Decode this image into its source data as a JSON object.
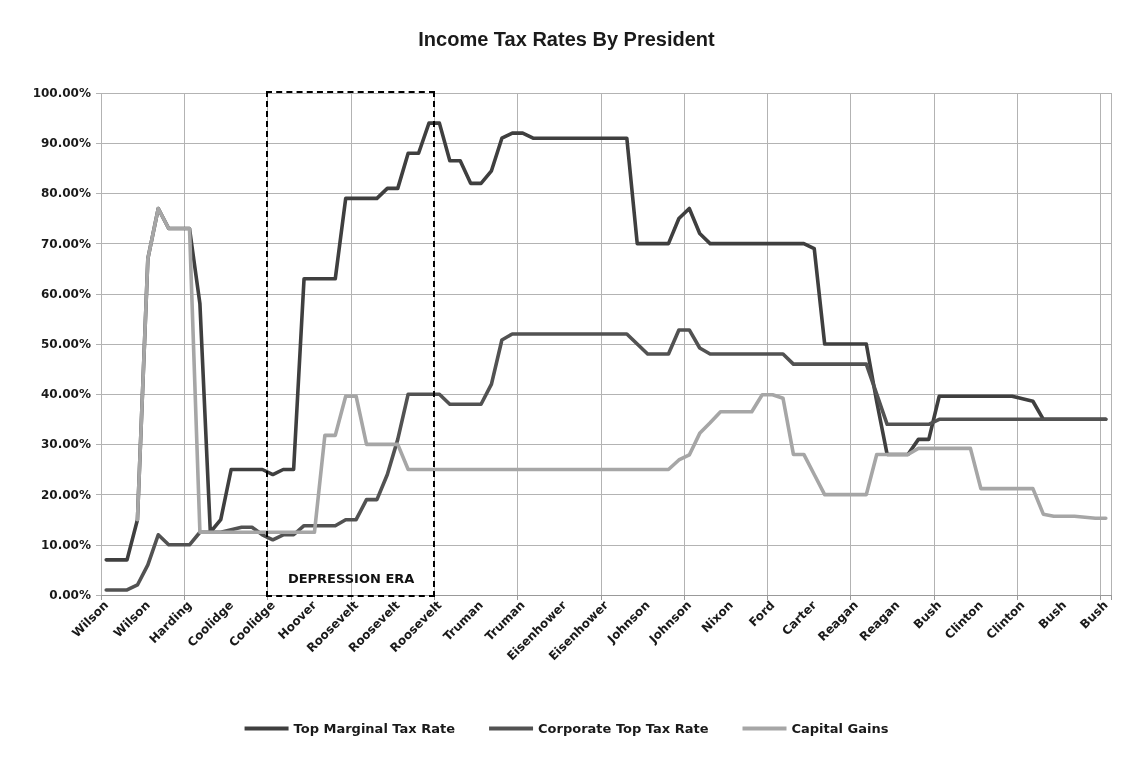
{
  "chart_data": {
    "type": "line",
    "title": "Income Tax Rates By President",
    "categories": [
      "Wilson",
      null,
      null,
      null,
      "Wilson",
      null,
      null,
      null,
      "Harding",
      null,
      null,
      null,
      "Coolidge",
      null,
      null,
      null,
      "Coolidge",
      null,
      null,
      null,
      "Hoover",
      null,
      null,
      null,
      "Roosevelt",
      null,
      null,
      null,
      "Roosevelt",
      null,
      null,
      null,
      "Roosevelt",
      null,
      null,
      null,
      "Truman",
      null,
      null,
      null,
      "Truman",
      null,
      null,
      null,
      "Eisenhower",
      null,
      null,
      null,
      "Eisenhower",
      null,
      null,
      null,
      "Johnson",
      null,
      null,
      null,
      "Johnson",
      null,
      null,
      null,
      "Nixon",
      null,
      null,
      null,
      "Ford",
      null,
      null,
      null,
      "Carter",
      null,
      null,
      null,
      "Reagan",
      null,
      null,
      null,
      "Reagan",
      null,
      null,
      null,
      "Bush",
      null,
      null,
      null,
      "Clinton",
      null,
      null,
      null,
      "Clinton",
      null,
      null,
      null,
      "Bush",
      null,
      null,
      null,
      "Bush"
    ],
    "series": [
      {
        "name": "Top Marginal Tax Rate",
        "color": "#3f3f3f",
        "values": [
          7,
          7,
          7,
          15,
          67,
          77,
          73,
          73,
          73,
          58,
          12.5,
          15,
          25,
          25,
          25,
          25,
          24,
          25,
          25,
          63,
          63,
          63,
          63,
          79,
          79,
          79,
          79,
          81,
          81,
          88,
          88,
          94,
          94,
          86.5,
          86.5,
          82,
          82,
          84.5,
          91,
          92,
          92,
          91,
          91,
          91,
          91,
          91,
          91,
          91,
          91,
          91,
          91,
          70,
          70,
          70,
          70,
          75,
          77,
          72,
          70,
          70,
          70,
          70,
          70,
          70,
          70,
          70,
          70,
          70,
          69,
          50,
          50,
          50,
          50,
          50,
          38.5,
          28,
          28,
          28,
          31,
          31,
          39.6,
          39.6,
          39.6,
          39.6,
          39.6,
          39.6,
          39.6,
          39.6,
          39.1,
          38.6,
          35,
          35,
          35,
          35,
          35,
          35,
          35
        ]
      },
      {
        "name": "Corporate Top Tax Rate",
        "color": "#525252",
        "values": [
          1,
          1,
          1,
          2,
          6,
          12,
          10,
          10,
          10,
          12.5,
          12.5,
          12.5,
          13,
          13.5,
          13.5,
          12,
          11,
          12,
          12,
          13.8,
          13.8,
          13.8,
          13.8,
          15,
          15,
          19,
          19,
          24,
          31,
          40,
          40,
          40,
          40,
          38,
          38,
          38,
          38,
          42,
          50.8,
          52,
          52,
          52,
          52,
          52,
          52,
          52,
          52,
          52,
          52,
          52,
          52,
          50,
          48,
          48,
          48,
          52.8,
          52.8,
          49.2,
          48,
          48,
          48,
          48,
          48,
          48,
          48,
          48,
          46,
          46,
          46,
          46,
          46,
          46,
          46,
          46,
          40,
          34,
          34,
          34,
          34,
          34,
          35,
          35,
          35,
          35,
          35,
          35,
          35,
          35,
          35,
          35,
          35,
          35,
          35,
          35,
          35,
          35,
          35
        ]
      },
      {
        "name": "Capital Gains",
        "color": "#a6a6a6",
        "values": [
          null,
          null,
          null,
          15,
          67,
          77,
          73,
          73,
          73,
          12.5,
          12.5,
          12.5,
          12.5,
          12.5,
          12.5,
          12.5,
          12.5,
          12.5,
          12.5,
          12.5,
          12.5,
          31.8,
          31.8,
          39.6,
          39.6,
          30,
          30,
          30,
          30,
          25,
          25,
          25,
          25,
          25,
          25,
          25,
          25,
          25,
          25,
          25,
          25,
          25,
          25,
          25,
          25,
          25,
          25,
          25,
          25,
          25,
          25,
          25,
          25,
          25,
          25,
          26.9,
          27.9,
          32.2,
          34.3,
          36.5,
          36.5,
          36.5,
          36.5,
          39.9,
          39.9,
          39.2,
          28,
          28,
          24,
          20,
          20,
          20,
          20,
          20,
          28,
          28,
          28,
          28,
          29.2,
          29.2,
          29.2,
          29.2,
          29.2,
          29.2,
          21.2,
          21.2,
          21.2,
          21.2,
          21.2,
          21.2,
          16.1,
          15.7,
          15.7,
          15.7,
          15.5,
          15.3,
          15.3
        ]
      }
    ],
    "ylim": [
      0,
      100
    ],
    "yticks": [
      {
        "value": 0,
        "label": "0.00%"
      },
      {
        "value": 10,
        "label": "10.00%"
      },
      {
        "value": 20,
        "label": "20.00%"
      },
      {
        "value": 30,
        "label": "30.00%"
      },
      {
        "value": 40,
        "label": "40.00%"
      },
      {
        "value": 50,
        "label": "50.00%"
      },
      {
        "value": 60,
        "label": "60.00%"
      },
      {
        "value": 70,
        "label": "70.00%"
      },
      {
        "value": 80,
        "label": "80.00%"
      },
      {
        "value": 90,
        "label": "90.00%"
      },
      {
        "value": 100,
        "label": "100.00%"
      }
    ],
    "annotations": [
      "DEPRESSION ERA"
    ],
    "grid": true,
    "legend": "bottom",
    "marker": "none",
    "line_style": "solid"
  }
}
